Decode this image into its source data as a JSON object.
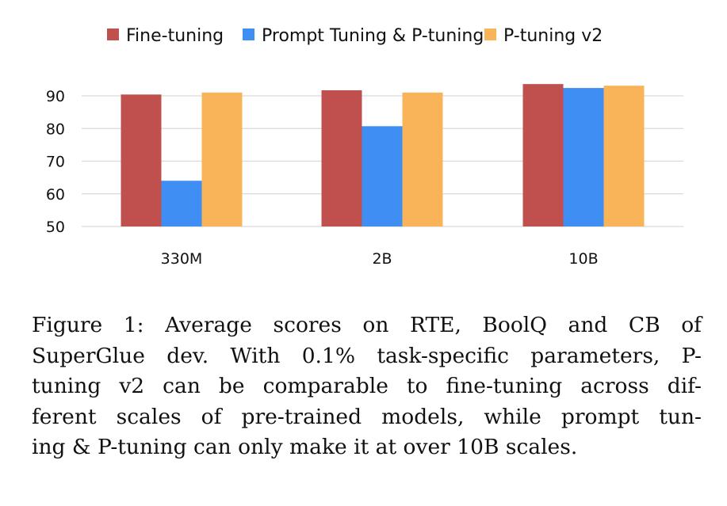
{
  "chart_data": {
    "type": "bar",
    "title": "",
    "xlabel": "",
    "ylabel": "",
    "categories": [
      "330M",
      "2B",
      "10B"
    ],
    "series": [
      {
        "name": "Fine-tuning",
        "color": "#c0504d",
        "values": [
          90.4,
          91.7,
          93.6
        ]
      },
      {
        "name": "Prompt Tuning & P-tuning",
        "color": "#3f8ef4",
        "values": [
          64.0,
          80.7,
          92.4
        ]
      },
      {
        "name": "P-tuning v2",
        "color": "#f9b459",
        "values": [
          91.0,
          91.0,
          93.1
        ]
      }
    ],
    "ylim": [
      50,
      95
    ],
    "yticks": [
      50,
      60,
      70,
      80,
      90
    ],
    "grid": true,
    "legend_position": "top"
  },
  "caption": {
    "lines": [
      "Figure 1:  Average scores on RTE, BoolQ and CB of",
      "SuperGlue dev. With 0.1% task-specific parameters, P-",
      "tuning v2 can be comparable to fine-tuning across dif-",
      "ferent scales of pre-trained models, while prompt tun-",
      "ing & P-tuning can only make it at over 10B scales."
    ]
  }
}
